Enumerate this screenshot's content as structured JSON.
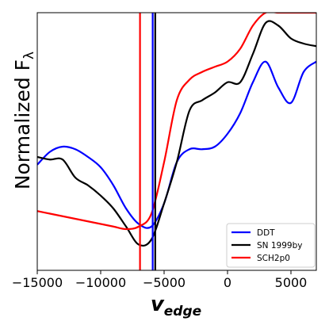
{
  "chart_data": {
    "type": "line",
    "xlabel_main": "v",
    "xlabel_sub": "edge",
    "ylabel": "Normalized F",
    "ylabel_sub": "λ",
    "xlim": [
      -15000,
      7000
    ],
    "ylim": [
      0,
      1
    ],
    "x_ticks": [
      -15000,
      -10000,
      -5000,
      0,
      5000
    ],
    "x_tick_labels": [
      "−15000",
      "−10000",
      "−5000",
      "0",
      "5000"
    ],
    "y_ticks_labeled": false,
    "grid": false,
    "legend_position": "lower-right",
    "series": [
      {
        "name": "DDT",
        "color": "#0000ff",
        "x": [
          -15000,
          -14000,
          -13000,
          -12000,
          -11000,
          -10000,
          -9000,
          -8000,
          -7000,
          -6000,
          -5000,
          -4000,
          -3000,
          -2000,
          -1000,
          0,
          1000,
          2000,
          3000,
          4000,
          5000,
          6000,
          7000
        ],
        "y": [
          0.41,
          0.46,
          0.48,
          0.47,
          0.44,
          0.4,
          0.33,
          0.24,
          0.18,
          0.17,
          0.26,
          0.42,
          0.47,
          0.47,
          0.48,
          0.53,
          0.61,
          0.73,
          0.81,
          0.71,
          0.65,
          0.77,
          0.81
        ]
      },
      {
        "name": "SN 1999by",
        "color": "#000000",
        "x": [
          -15000,
          -14000,
          -13000,
          -12000,
          -11000,
          -10000,
          -9000,
          -8000,
          -7000,
          -6000,
          -5000,
          -4000,
          -3000,
          -2000,
          -1000,
          0,
          1000,
          2000,
          3000,
          4000,
          5000,
          6000,
          7000
        ],
        "y": [
          0.44,
          0.43,
          0.43,
          0.36,
          0.33,
          0.29,
          0.24,
          0.17,
          0.1,
          0.12,
          0.26,
          0.42,
          0.62,
          0.66,
          0.69,
          0.73,
          0.73,
          0.84,
          0.96,
          0.95,
          0.9,
          0.88,
          0.87
        ]
      },
      {
        "name": "SCH2p0",
        "color": "#ff0000",
        "x": [
          -15000,
          -14000,
          -13000,
          -12000,
          -11000,
          -10000,
          -9000,
          -8000,
          -7000,
          -6000,
          -5000,
          -4000,
          -3000,
          -2000,
          -1000,
          0,
          1000,
          2000,
          3000,
          4000,
          5000,
          6000,
          7000
        ],
        "y": [
          0.23,
          0.22,
          0.21,
          0.2,
          0.19,
          0.18,
          0.17,
          0.16,
          0.17,
          0.22,
          0.42,
          0.66,
          0.74,
          0.77,
          0.79,
          0.81,
          0.86,
          0.95,
          1.0,
          1.0,
          1.0,
          1.0,
          1.0
        ]
      }
    ],
    "vertical_lines": [
      {
        "x": -6900,
        "color": "#ff0000"
      },
      {
        "x": -5900,
        "color": "#0000ff"
      },
      {
        "x": -5700,
        "color": "#000000"
      }
    ]
  }
}
